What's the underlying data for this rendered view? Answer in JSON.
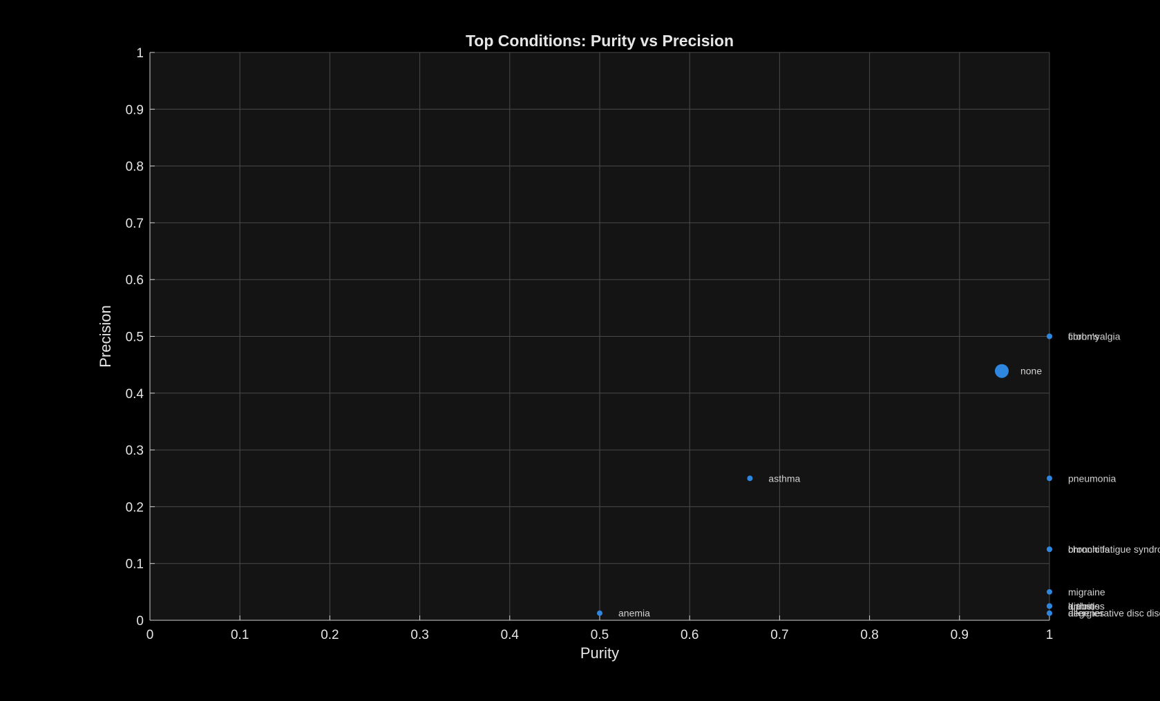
{
  "chart_data": {
    "type": "scatter",
    "title": "Top Conditions: Purity vs Precision",
    "xlabel": "Purity",
    "ylabel": "Precision",
    "xlim": [
      0,
      1
    ],
    "ylim": [
      0,
      1
    ],
    "xticks": [
      0,
      0.1,
      0.2,
      0.3,
      0.4,
      0.5,
      0.6,
      0.7,
      0.8,
      0.9,
      1
    ],
    "yticks": [
      0,
      0.1,
      0.2,
      0.3,
      0.4,
      0.5,
      0.6,
      0.7,
      0.8,
      0.9,
      1
    ],
    "xtick_labels": [
      "0",
      "0.1",
      "0.2",
      "0.3",
      "0.4",
      "0.5",
      "0.6",
      "0.7",
      "0.8",
      "0.9",
      "1"
    ],
    "ytick_labels": [
      "0",
      "0.1",
      "0.2",
      "0.3",
      "0.4",
      "0.5",
      "0.6",
      "0.7",
      "0.8",
      "0.9",
      "1"
    ],
    "grid": true,
    "background": "#141414",
    "point_color": "#2e86de",
    "points": [
      {
        "label": "none",
        "x": 0.947,
        "y": 0.439,
        "size": "large"
      },
      {
        "label": "fibromyalgia",
        "x": 1.0,
        "y": 0.5,
        "size": "small"
      },
      {
        "label": "crohn's",
        "x": 1.0,
        "y": 0.5,
        "size": "small"
      },
      {
        "label": "asthma",
        "x": 0.667,
        "y": 0.25,
        "size": "small"
      },
      {
        "label": "pneumonia",
        "x": 1.0,
        "y": 0.25,
        "size": "small"
      },
      {
        "label": "bronchitis",
        "x": 1.0,
        "y": 0.125,
        "size": "small"
      },
      {
        "label": "chronic fatigue syndrome",
        "x": 1.0,
        "y": 0.125,
        "size": "small"
      },
      {
        "label": "migraine",
        "x": 1.0,
        "y": 0.05,
        "size": "small"
      },
      {
        "label": "diabetes",
        "x": 1.0,
        "y": 0.025,
        "size": "small"
      },
      {
        "label": "arthritis",
        "x": 1.0,
        "y": 0.025,
        "size": "small"
      },
      {
        "label": "lupus",
        "x": 1.0,
        "y": 0.025,
        "size": "small"
      },
      {
        "label": "degenerative disc disease",
        "x": 1.0,
        "y": 0.0125,
        "size": "small"
      },
      {
        "label": "allergies",
        "x": 1.0,
        "y": 0.0125,
        "size": "small"
      },
      {
        "label": "anemia",
        "x": 0.5,
        "y": 0.0125,
        "size": "small"
      }
    ]
  }
}
